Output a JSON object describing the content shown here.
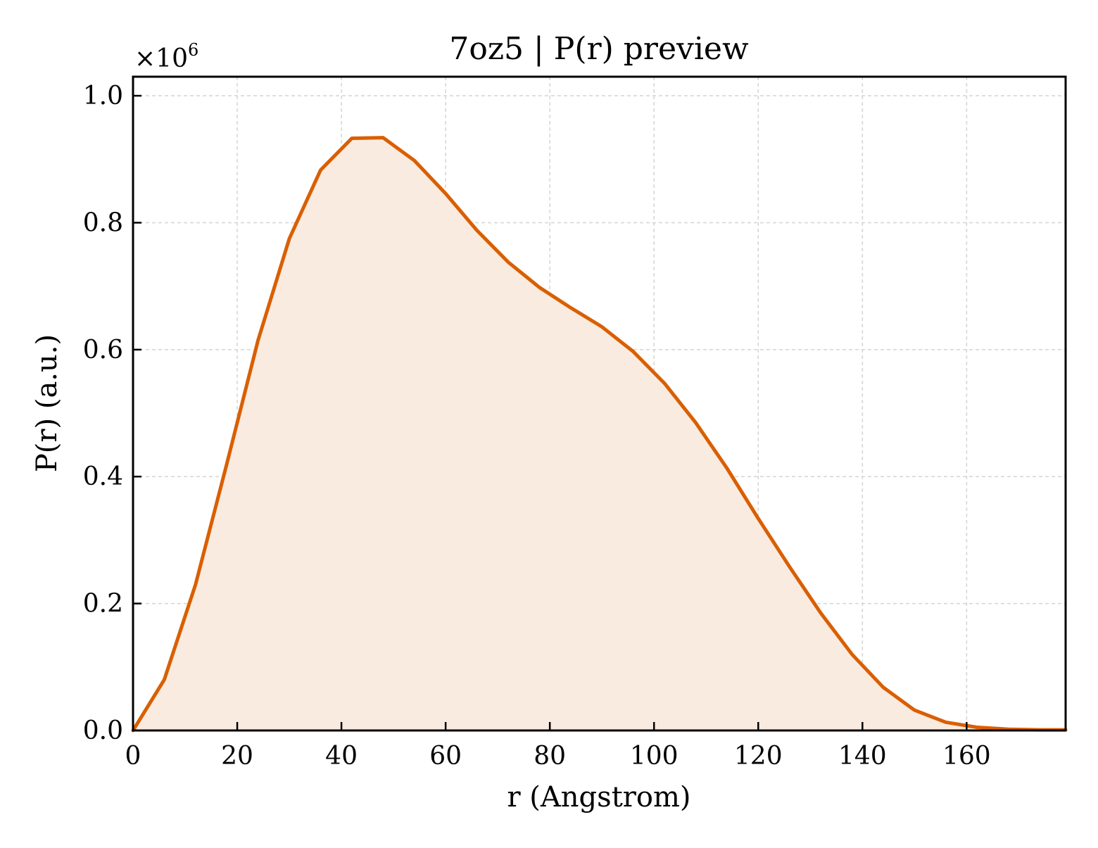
{
  "chart_data": {
    "type": "area",
    "title": "7oz5 | P(r) preview",
    "xlabel": "r (Angstrom)",
    "ylabel": "P(r) (a.u.)",
    "y_multiplier_label": "×10",
    "y_multiplier_exponent": "6",
    "xlim": [
      0,
      179
    ],
    "ylim": [
      0,
      1.03
    ],
    "x_ticks": [
      0,
      20,
      40,
      60,
      80,
      100,
      120,
      140,
      160
    ],
    "x_tick_labels": [
      "0",
      "20",
      "40",
      "60",
      "80",
      "100",
      "120",
      "140",
      "160"
    ],
    "y_ticks": [
      0.0,
      0.2,
      0.4,
      0.6,
      0.8,
      1.0
    ],
    "y_tick_labels": [
      "0.0",
      "0.2",
      "0.4",
      "0.6",
      "0.8",
      "1.0"
    ],
    "grid": true,
    "line_color": "#d95f02",
    "fill_color": "#f9ebe0",
    "series": [
      {
        "x": [
          0,
          6,
          12,
          18,
          24,
          30,
          36,
          42,
          48,
          54,
          60,
          66,
          72,
          78,
          84,
          90,
          96,
          102,
          108,
          114,
          120,
          126,
          132,
          138,
          144,
          150,
          156,
          162,
          168,
          174,
          179
        ],
        "values": [
          0.0,
          0.08,
          0.23,
          0.42,
          0.615,
          0.775,
          0.883,
          0.933,
          0.934,
          0.898,
          0.846,
          0.788,
          0.738,
          0.698,
          0.666,
          0.636,
          0.597,
          0.547,
          0.485,
          0.413,
          0.334,
          0.258,
          0.185,
          0.12,
          0.068,
          0.032,
          0.013,
          0.005,
          0.002,
          0.001,
          0.001
        ]
      }
    ]
  }
}
